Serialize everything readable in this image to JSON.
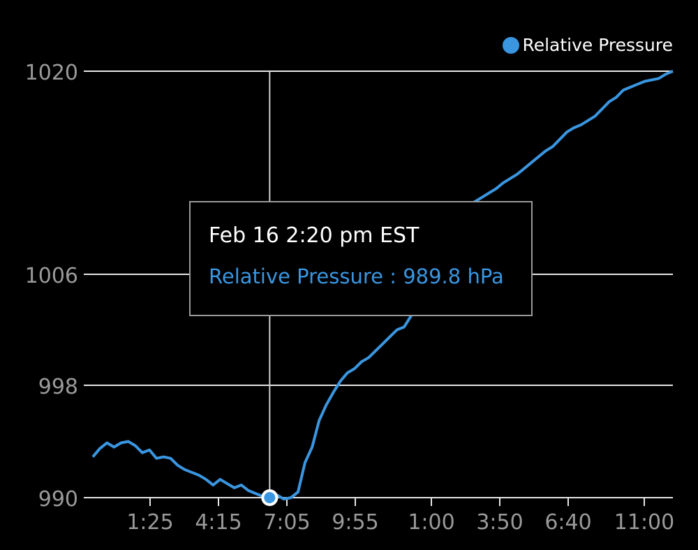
{
  "chart_data": {
    "type": "line",
    "ylim": [
      990,
      1020
    ],
    "yticks": [
      "990",
      "998",
      "1006",
      "1020"
    ],
    "xticks": [
      "1:25",
      "4:15",
      "7:05",
      "9:55",
      "1:00",
      "3:50",
      "6:40",
      "11:00"
    ],
    "series": [
      {
        "name": "Relative Pressure",
        "color": "#3a96e0",
        "values": [
          992.9,
          993.5,
          993.9,
          993.6,
          993.9,
          994.0,
          993.7,
          993.2,
          993.4,
          992.8,
          992.9,
          992.8,
          992.3,
          992.0,
          991.8,
          991.6,
          991.3,
          990.9,
          991.3,
          991.0,
          990.7,
          990.9,
          990.5,
          990.3,
          990.1,
          989.8,
          990.2,
          989.9,
          990.0,
          990.4,
          992.5,
          993.6,
          995.5,
          996.6,
          997.5,
          998.3,
          998.9,
          999.2,
          999.7,
          1000.0,
          1000.5,
          1001.0,
          1001.5,
          1002.0,
          1002.2,
          1003.0,
          1004.0,
          1005.5,
          1006.5,
          1007.5,
          1008.5,
          1009.5,
          1010.2,
          1010.8,
          1011.0,
          1011.3,
          1011.6,
          1011.9,
          1012.3,
          1012.6,
          1012.9,
          1013.3,
          1013.7,
          1014.1,
          1014.5,
          1014.8,
          1015.3,
          1015.8,
          1016.1,
          1016.3,
          1016.6,
          1016.9,
          1017.4,
          1017.9,
          1018.2,
          1018.7,
          1018.9,
          1019.1,
          1019.3,
          1019.4,
          1019.5,
          1019.8,
          1020.0
        ],
        "y_range_note": ""
      }
    ],
    "highlight": {
      "index": 25,
      "value": 989.8
    }
  },
  "legend": {
    "label": "Relative Pressure",
    "color": "#3a96e0"
  },
  "tooltip": {
    "title": "Feb 16 2:20 pm EST",
    "value_text": "Relative Pressure : 989.8 hPa"
  }
}
